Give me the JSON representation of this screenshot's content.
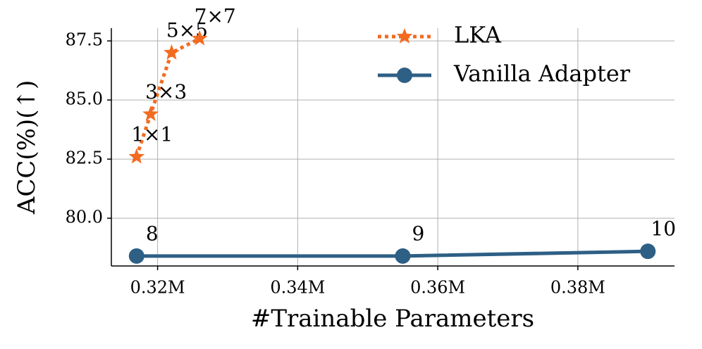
{
  "chart_data": {
    "type": "line",
    "xlabel": "#Trainable Parameters",
    "ylabel": "ACC(%)(↑)",
    "series": [
      {
        "name": "LKA",
        "color": "#f26b21",
        "marker": "star",
        "linestyle": "dotted",
        "x": [
          0.317,
          0.319,
          0.322,
          0.326
        ],
        "values": [
          82.6,
          84.4,
          87.0,
          87.6
        ],
        "point_labels": [
          "1×1",
          "3×3",
          "5×5",
          "7×7"
        ]
      },
      {
        "name": "Vanilla Adapter",
        "color": "#2e5f85",
        "marker": "circle",
        "linestyle": "solid",
        "x": [
          0.317,
          0.355,
          0.39
        ],
        "values": [
          78.4,
          78.4,
          78.6
        ],
        "point_labels": [
          "8",
          "9",
          "10"
        ]
      }
    ],
    "xlim": [
      0.3134,
      0.3938
    ],
    "ylim": [
      77.98,
      88.04
    ],
    "xticks": [
      {
        "value": 0.32,
        "label": "0.32M"
      },
      {
        "value": 0.34,
        "label": "0.34M"
      },
      {
        "value": 0.36,
        "label": "0.36M"
      },
      {
        "value": 0.38,
        "label": "0.38M"
      }
    ],
    "yticks": [
      {
        "value": 80.0,
        "label": "80.0"
      },
      {
        "value": 82.5,
        "label": "82.5"
      },
      {
        "value": 85.0,
        "label": "85.0"
      },
      {
        "value": 87.5,
        "label": "87.5"
      }
    ],
    "grid": true,
    "legend": "upper right"
  }
}
